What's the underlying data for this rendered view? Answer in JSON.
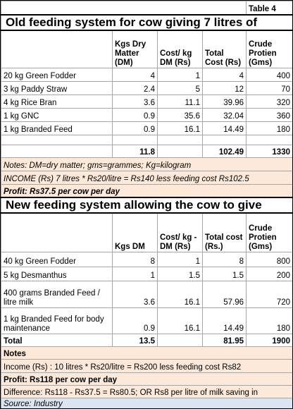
{
  "label": "Table 4",
  "old": {
    "title": "Old feeding system for cow giving 7 litres of",
    "header": [
      "Kgs Dry Matter (DM)",
      "Cost/ kg DM (Rs)",
      "Total Cost (Rs)",
      "Crude Protien (Gms)"
    ],
    "rows": [
      {
        "item": "20 kg Green Fodder",
        "dm": 4,
        "cost": 1,
        "total": 4,
        "protein": 400
      },
      {
        "item": "3 kg Paddy Straw",
        "dm": 2.4,
        "cost": 5,
        "total": 12,
        "protein": 70
      },
      {
        "item": "4 kg Rice Bran",
        "dm": 3.6,
        "cost": 11.1,
        "total": 39.96,
        "protein": 320
      },
      {
        "item": "1 kg GNC",
        "dm": 0.9,
        "cost": 35.6,
        "total": 32.04,
        "protein": 360
      },
      {
        "item": "1 kg Branded Feed",
        "dm": 0.9,
        "cost": 16.1,
        "total": 14.49,
        "protein": 180
      }
    ],
    "total": {
      "dm": 11.8,
      "total": 102.49,
      "protein": 1330
    },
    "notes": "Notes: DM=dry matter; gms=grammes; Kg=kilogram",
    "income": "INCOME (Rs) 7 litres * Rs20/litre = Rs140 less feeding cost Rs102.5",
    "profit": "Profit: Rs37.5 per cow per day"
  },
  "new": {
    "title": "New feeding system allowing the cow to give",
    "header": [
      "Kgs DM",
      "Cost/ kg - DM (Rs)",
      "Total cost (Rs.)",
      "Crude Protien (Gms)"
    ],
    "rows": [
      {
        "item": "40 kg Green Fodder",
        "dm": 8,
        "cost": 1,
        "total": 8,
        "protein": 800
      },
      {
        "item": "5 kg Desmanthus",
        "dm": 1,
        "cost": 1.5,
        "total": 1.5,
        "protein": 200
      },
      {
        "item": "400 grams Branded Feed / litre milk",
        "dm": 3.6,
        "cost": 16.1,
        "total": 57.96,
        "protein": 720
      },
      {
        "item": "1 kg Branded Feed for body maintenance",
        "dm": 0.9,
        "cost": 16.1,
        "total": 14.49,
        "protein": 180
      }
    ],
    "total": {
      "item": "Total",
      "dm": 13.5,
      "total": 81.95,
      "protein": 1900
    },
    "notes": "Notes",
    "income": "Income (Rs) : 10 litres * Rs20/litre = Rs200 less feeding cost Rs82",
    "profit": "Profit: Rs118 per cow per day",
    "difference": "Difference: Rs118 - Rs37.5 = Rs80.5; OR Rs8 per litre of milk saving in",
    "source": "Source: Industry"
  }
}
